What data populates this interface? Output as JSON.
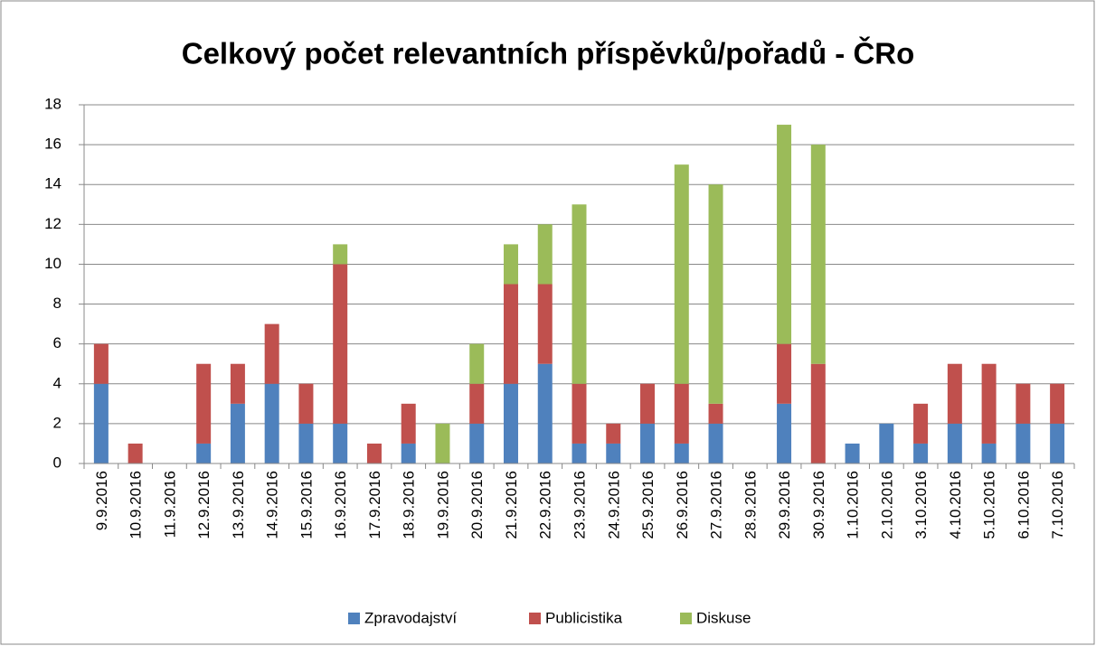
{
  "chart_data": {
    "type": "stacked_bar",
    "title": "Celkový počet relevantních příspěvků/pořadů - ČRo",
    "categories": [
      "9.9.2016",
      "10.9.2016",
      "11.9.2016",
      "12.9.2016",
      "13.9.2016",
      "14.9.2016",
      "15.9.2016",
      "16.9.2016",
      "17.9.2016",
      "18.9.2016",
      "19.9.2016",
      "20.9.2016",
      "21.9.2016",
      "22.9.2016",
      "23.9.2016",
      "24.9.2016",
      "25.9.2016",
      "26.9.2016",
      "27.9.2016",
      "28.9.2016",
      "29.9.2016",
      "30.9.2016",
      "1.10.2016",
      "2.10.2016",
      "3.10.2016",
      "4.10.2016",
      "5.10.2016",
      "6.10.2016",
      "7.10.2016"
    ],
    "series": [
      {
        "name": "Zpravodajství",
        "color": "#4f81bd",
        "values": [
          4,
          0,
          0,
          1,
          3,
          4,
          2,
          2,
          0,
          1,
          0,
          2,
          4,
          5,
          1,
          1,
          2,
          1,
          2,
          0,
          3,
          0,
          1,
          2,
          1,
          2,
          1,
          2,
          2
        ]
      },
      {
        "name": "Publicistika",
        "color": "#c0504d",
        "values": [
          2,
          1,
          0,
          4,
          2,
          3,
          2,
          8,
          1,
          2,
          0,
          2,
          5,
          4,
          3,
          1,
          2,
          3,
          1,
          0,
          3,
          5,
          0,
          0,
          2,
          3,
          4,
          2,
          2
        ]
      },
      {
        "name": "Diskuse",
        "color": "#9bbb59",
        "values": [
          0,
          0,
          0,
          0,
          0,
          0,
          0,
          1,
          0,
          0,
          2,
          2,
          2,
          3,
          9,
          0,
          0,
          11,
          11,
          0,
          11,
          11,
          0,
          0,
          0,
          0,
          0,
          0,
          0
        ]
      }
    ],
    "ylim": [
      0,
      18
    ],
    "yticks": [
      0,
      2,
      4,
      6,
      8,
      10,
      12,
      14,
      16,
      18
    ],
    "grid": true,
    "legend": "bottom"
  }
}
